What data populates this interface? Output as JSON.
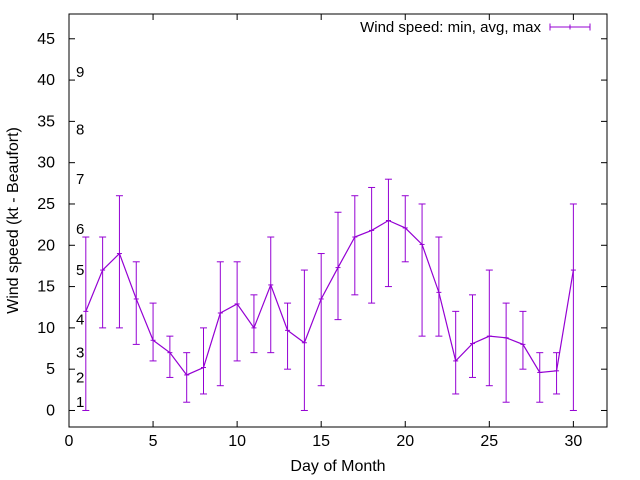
{
  "chart_data": {
    "type": "line",
    "title": "",
    "xlabel": "Day of Month",
    "ylabel": "Wind speed (kt - Beaufort)",
    "xlim": [
      0,
      32
    ],
    "ylim": [
      -2,
      48
    ],
    "xticks": [
      0,
      5,
      10,
      15,
      20,
      25,
      30
    ],
    "yticks": [
      0,
      5,
      10,
      15,
      20,
      25,
      30,
      35,
      40,
      45
    ],
    "grid": false,
    "legend_position": "top-right",
    "series": [
      {
        "name": "Wind speed: min, avg, max",
        "color": "#9400d3",
        "style": "line-with-error-bars",
        "x": [
          1,
          2,
          3,
          4,
          5,
          6,
          7,
          8,
          9,
          10,
          11,
          12,
          13,
          14,
          15,
          16,
          17,
          18,
          19,
          20,
          21,
          22,
          23,
          24,
          25,
          26,
          27,
          28,
          29,
          30
        ],
        "avg": [
          12,
          17,
          19,
          13.5,
          8.5,
          7,
          4.3,
          5.2,
          11.8,
          12.9,
          10,
          15.2,
          9.7,
          8.2,
          13.5,
          17.3,
          21,
          21.8,
          23,
          22.1,
          20.1,
          14.3,
          6,
          8.1,
          9,
          8.8,
          8,
          4.6,
          4.8,
          17
        ],
        "min": [
          0,
          10,
          10,
          8,
          6,
          4,
          1,
          2,
          3,
          6,
          7,
          7,
          5,
          0,
          3,
          11,
          14,
          13,
          15,
          18,
          9,
          9,
          2,
          4,
          3,
          1,
          5,
          1,
          2,
          0
        ],
        "max": [
          21,
          21,
          26,
          18,
          13,
          9,
          7,
          10,
          18,
          18,
          14,
          21,
          13,
          17,
          19,
          24,
          26,
          27,
          28,
          26,
          25,
          21,
          12,
          14,
          17,
          13,
          12,
          7,
          7,
          25
        ]
      }
    ],
    "annotations": [
      {
        "text": "1",
        "y": 1
      },
      {
        "text": "2",
        "y": 4
      },
      {
        "text": "3",
        "y": 7
      },
      {
        "text": "4",
        "y": 11
      },
      {
        "text": "5",
        "y": 17
      },
      {
        "text": "6",
        "y": 22
      },
      {
        "text": "7",
        "y": 28
      },
      {
        "text": "8",
        "y": 34
      },
      {
        "text": "9",
        "y": 41
      }
    ]
  }
}
